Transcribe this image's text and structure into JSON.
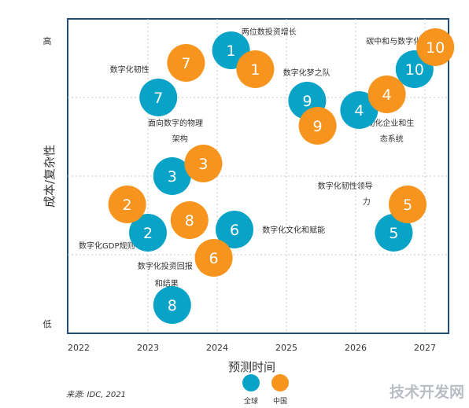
{
  "chart_data": {
    "type": "scatter",
    "title": "",
    "xlabel": "预测时间",
    "ylabel": "成本/复杂性",
    "xlim": [
      2022,
      2027.2
    ],
    "ylim": [
      0,
      10
    ],
    "x_ticks": [
      "2022",
      "2023",
      "2024",
      "2025",
      "2026",
      "2027"
    ],
    "y_ticks": [
      {
        "label": "高",
        "value": 9.3
      },
      {
        "label": "低",
        "value": 0.3
      }
    ],
    "grid": true,
    "legend_position": "bottom-center",
    "series": [
      {
        "name": "全球",
        "color": "#0aa3c8",
        "points": [
          {
            "label": "1",
            "x": 2024.2,
            "y": 9.0
          },
          {
            "label": "2",
            "x": 2023.0,
            "y": 3.2
          },
          {
            "label": "3",
            "x": 2023.35,
            "y": 5.0
          },
          {
            "label": "4",
            "x": 2026.05,
            "y": 7.1
          },
          {
            "label": "5",
            "x": 2026.55,
            "y": 3.2
          },
          {
            "label": "6",
            "x": 2024.25,
            "y": 3.3
          },
          {
            "label": "7",
            "x": 2023.15,
            "y": 7.5
          },
          {
            "label": "8",
            "x": 2023.35,
            "y": 0.9
          },
          {
            "label": "9",
            "x": 2025.3,
            "y": 7.4
          },
          {
            "label": "10",
            "x": 2026.85,
            "y": 8.4
          }
        ]
      },
      {
        "name": "中国",
        "color": "#f7941d",
        "points": [
          {
            "label": "1",
            "x": 2024.55,
            "y": 8.4
          },
          {
            "label": "2",
            "x": 2022.7,
            "y": 4.1
          },
          {
            "label": "3",
            "x": 2023.8,
            "y": 5.4
          },
          {
            "label": "4",
            "x": 2026.45,
            "y": 7.6
          },
          {
            "label": "5",
            "x": 2026.75,
            "y": 4.1
          },
          {
            "label": "6",
            "x": 2023.95,
            "y": 2.4
          },
          {
            "label": "7",
            "x": 2023.55,
            "y": 8.6
          },
          {
            "label": "8",
            "x": 2023.6,
            "y": 3.6
          },
          {
            "label": "9",
            "x": 2025.45,
            "y": 6.6
          },
          {
            "label": "10",
            "x": 2027.15,
            "y": 9.1
          }
        ]
      }
    ],
    "annotations": [
      {
        "text": "两位数投资增长",
        "x": 2024.35,
        "y": 9.5
      },
      {
        "text": "数字化韧性",
        "x": 2022.45,
        "y": 8.3
      },
      {
        "text": "数字化梦之队",
        "x": 2024.95,
        "y": 8.2
      },
      {
        "text": "碳中和与数字化",
        "x": 2026.15,
        "y": 9.2
      },
      {
        "text": "面向数字的物理",
        "x": 2023.0,
        "y": 6.6
      },
      {
        "text": "架构",
        "x": 2023.35,
        "y": 6.1
      },
      {
        "text": "自动化企业和生",
        "x": 2026.05,
        "y": 6.6
      },
      {
        "text": "态系统",
        "x": 2026.35,
        "y": 6.1
      },
      {
        "text": "数字化韧性领导",
        "x": 2025.45,
        "y": 4.6
      },
      {
        "text": "力",
        "x": 2026.1,
        "y": 4.1
      },
      {
        "text": "数字化GDP规则",
        "x": 2022.0,
        "y": 2.7
      },
      {
        "text": "数字化文化和赋能",
        "x": 2024.65,
        "y": 3.2
      },
      {
        "text": "数字化投资回报",
        "x": 2022.85,
        "y": 2.05
      },
      {
        "text": "和结果",
        "x": 2023.1,
        "y": 1.5
      }
    ]
  },
  "source_text": "来源: IDC, 2021",
  "watermark_text": "技术开发网"
}
